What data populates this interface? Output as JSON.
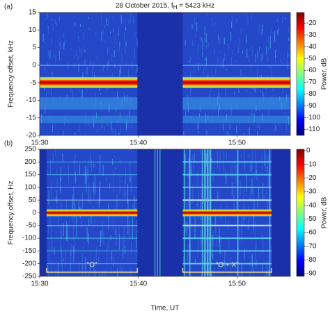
{
  "chart_data": [
    {
      "type": "spectrogram",
      "panel_label": "(a)",
      "title": "28 October 2015, f",
      "title_sub": "H",
      "title_end": " = 5423 kHz",
      "y_label": "Frequency offset, kHz",
      "colorbar_label": "Power, dB",
      "xlim": [
        930,
        955.4
      ],
      "xticks": [
        {
          "value": 930,
          "label": "15:30"
        },
        {
          "value": 940,
          "label": "15:40"
        },
        {
          "value": 950,
          "label": "15:50"
        }
      ],
      "ylim": [
        -20,
        15
      ],
      "yticks": [
        -20,
        -15,
        -10,
        -5,
        0,
        5,
        10,
        15
      ],
      "clim": [
        -115,
        -11
      ],
      "cticks": [
        -20,
        -30,
        -40,
        -50,
        -60,
        -70,
        -80,
        -90,
        -100,
        -110
      ],
      "segments": [
        {
          "start": 930,
          "end": 939.9
        },
        {
          "start": 944.5,
          "end": 955.4
        }
      ]
    },
    {
      "type": "spectrogram",
      "panel_label": "(b)",
      "x_label": "Time, UT",
      "y_label": "Frequency offset, Hz",
      "colorbar_label": "Power, dB",
      "xlim": [
        930,
        955.4
      ],
      "xticks": [
        {
          "value": 930,
          "label": "15:30"
        },
        {
          "value": 940,
          "label": "15:40"
        },
        {
          "value": 950,
          "label": "15:50"
        }
      ],
      "ylim": [
        -250,
        250
      ],
      "yticks": [
        -250,
        -200,
        -150,
        -100,
        -50,
        0,
        50,
        100,
        150,
        200,
        250
      ],
      "clim": [
        -92,
        1
      ],
      "cticks": [
        0,
        -10,
        -20,
        -30,
        -40,
        -50,
        -60,
        -70,
        -80,
        -90
      ],
      "segments": [
        {
          "start": 930.7,
          "end": 939.9
        },
        {
          "start": 944.5,
          "end": 953.5
        }
      ],
      "annotations": [
        {
          "text": "\"O\"",
          "start": 930.7,
          "end": 939.9
        },
        {
          "text": "\"O + X\"",
          "start": 944.5,
          "end": 953.5
        }
      ]
    }
  ]
}
